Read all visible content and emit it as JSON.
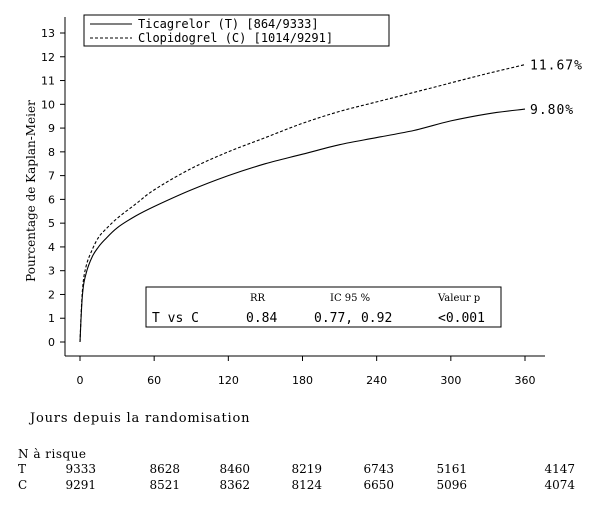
{
  "chart_data": {
    "type": "line",
    "title": "",
    "xlabel": "Jours depuis la randomisation",
    "ylabel": "Pourcentage de Kaplan-Meier",
    "xlim": [
      0,
      360
    ],
    "ylim": [
      0,
      13
    ],
    "x_ticks": [
      "0",
      "60",
      "120",
      "180",
      "240",
      "300",
      "360"
    ],
    "y_ticks": [
      "0",
      "1",
      "2",
      "3",
      "4",
      "5",
      "6",
      "7",
      "8",
      "9",
      "10",
      "11",
      "12",
      "13"
    ],
    "grid": false,
    "legend_position": "top-left",
    "series": [
      {
        "name": "Ticagrelor (T) [864/9333]",
        "style": "solid",
        "color": "#000000",
        "end_label": "9.80%",
        "x": [
          0,
          2,
          5,
          10,
          15,
          20,
          30,
          45,
          60,
          90,
          120,
          150,
          180,
          210,
          240,
          270,
          300,
          330,
          360
        ],
        "y": [
          0,
          2.0,
          2.9,
          3.6,
          4.0,
          4.3,
          4.8,
          5.3,
          5.7,
          6.4,
          7.0,
          7.5,
          7.9,
          8.3,
          8.6,
          8.9,
          9.3,
          9.6,
          9.8
        ]
      },
      {
        "name": "Clopidogrel (C) [1014/9291]",
        "style": "dashed",
        "color": "#000000",
        "end_label": "11.67%",
        "x": [
          0,
          2,
          5,
          10,
          15,
          20,
          30,
          45,
          60,
          90,
          120,
          150,
          180,
          210,
          240,
          270,
          300,
          330,
          360
        ],
        "y": [
          0,
          2.2,
          3.2,
          3.9,
          4.4,
          4.7,
          5.2,
          5.8,
          6.4,
          7.3,
          8.0,
          8.6,
          9.2,
          9.7,
          10.1,
          10.5,
          10.9,
          11.3,
          11.67
        ]
      }
    ],
    "stats_box": {
      "headers": [
        "RR",
        "IC 95 %",
        "Valeur p"
      ],
      "row_label": "T vs C",
      "values": [
        "0.84",
        "0.77, 0.92",
        "<0.001"
      ]
    },
    "risk_table": {
      "title": "N à risque",
      "rows": [
        {
          "label": "T",
          "values": [
            "9333",
            "8628",
            "8460",
            "8219",
            "6743",
            "5161",
            "4147"
          ]
        },
        {
          "label": "C",
          "values": [
            "9291",
            "8521",
            "8362",
            "8124",
            "6650",
            "5096",
            "4074"
          ]
        }
      ]
    }
  }
}
